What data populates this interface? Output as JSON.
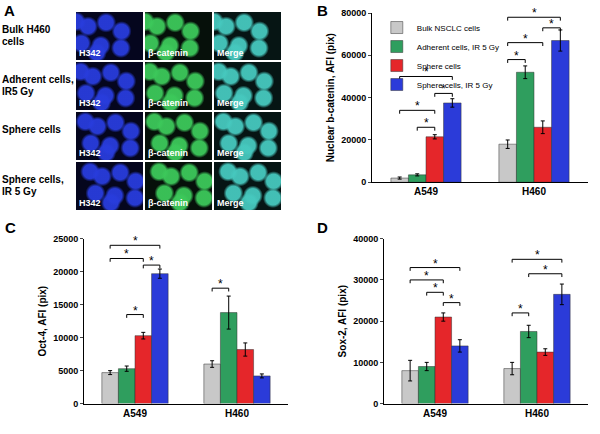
{
  "panel_a": {
    "label": "A",
    "rows": [
      "Bulk H460 cells",
      "Adherent cells, IR5 Gy",
      "Sphere cells",
      "Sphere cells, IR 5 Gy"
    ],
    "columns": [
      "H342",
      "β-catenin",
      "Merge"
    ]
  },
  "chart_data": [
    {
      "type": "bar",
      "title": "B",
      "y_label": "Nuclear b-catenin, AFI (pix)",
      "categories": [
        "A549",
        "H460"
      ],
      "series": [
        {
          "name": "Bulk NSCLC cells",
          "color": "#c8c8c8",
          "values": [
            2000,
            18000
          ],
          "errors": [
            500,
            2000
          ]
        },
        {
          "name": "Adherent cells, IR 5 Gy",
          "color": "#2f9e5e",
          "values": [
            3500,
            52000
          ],
          "errors": [
            500,
            3000
          ]
        },
        {
          "name": "Sphere cells",
          "color": "#e5262a",
          "values": [
            21500,
            26000
          ],
          "errors": [
            1000,
            3000
          ]
        },
        {
          "name": "Sphere cells, IR 5 Gy",
          "color": "#2b3bd9",
          "values": [
            37500,
            67000
          ],
          "errors": [
            2000,
            5000
          ]
        }
      ],
      "ylim": [
        0,
        80000
      ],
      "yticks": [
        0,
        20000,
        40000,
        60000,
        80000
      ],
      "grid": false,
      "legend": "upper left",
      "significance": [
        {
          "category": 0,
          "from": 0,
          "to": 3,
          "y": 50000,
          "text": "*"
        },
        {
          "category": 0,
          "from": 2,
          "to": 3,
          "y": 42000,
          "text": "*"
        },
        {
          "category": 0,
          "from": 0,
          "to": 2,
          "y": 34000,
          "text": "*"
        },
        {
          "category": 0,
          "from": 1,
          "to": 2,
          "y": 26000,
          "text": "*"
        },
        {
          "category": 1,
          "from": 0,
          "to": 3,
          "y": 78000,
          "text": "*"
        },
        {
          "category": 1,
          "from": 2,
          "to": 3,
          "y": 73000,
          "text": "*"
        },
        {
          "category": 1,
          "from": 0,
          "to": 2,
          "y": 66000,
          "text": "*"
        },
        {
          "category": 1,
          "from": 0,
          "to": 1,
          "y": 58000,
          "text": "*"
        }
      ]
    },
    {
      "type": "bar",
      "title": "C",
      "y_label": "Oct-4, AFI (pix)",
      "categories": [
        "A549",
        "H460"
      ],
      "series": [
        {
          "color": "#c8c8c8",
          "values": [
            4700,
            6000
          ],
          "errors": [
            300,
            500
          ]
        },
        {
          "color": "#2f9e5e",
          "values": [
            5300,
            13800
          ],
          "errors": [
            400,
            2500
          ]
        },
        {
          "color": "#e5262a",
          "values": [
            10300,
            8200
          ],
          "errors": [
            500,
            1000
          ]
        },
        {
          "color": "#2b3bd9",
          "values": [
            19700,
            4200
          ],
          "errors": [
            700,
            300
          ]
        }
      ],
      "ylim": [
        0,
        25000
      ],
      "yticks": [
        0,
        5000,
        10000,
        15000,
        20000,
        25000
      ],
      "grid": false,
      "significance": [
        {
          "category": 0,
          "from": 0,
          "to": 3,
          "y": 24000,
          "text": "*"
        },
        {
          "category": 0,
          "from": 0,
          "to": 2,
          "y": 22000,
          "text": "*"
        },
        {
          "category": 0,
          "from": 2,
          "to": 3,
          "y": 21000,
          "text": "*"
        },
        {
          "category": 0,
          "from": 1,
          "to": 2,
          "y": 13500,
          "text": "*"
        },
        {
          "category": 1,
          "from": 0,
          "to": 1,
          "y": 17500,
          "text": "*"
        }
      ]
    },
    {
      "type": "bar",
      "title": "D",
      "y_label": "Sox-2, AFI (pix)",
      "categories": [
        "A549",
        "H460"
      ],
      "series": [
        {
          "color": "#c8c8c8",
          "values": [
            8000,
            8500
          ],
          "errors": [
            2500,
            1500
          ]
        },
        {
          "color": "#2f9e5e",
          "values": [
            9000,
            17500
          ],
          "errors": [
            1000,
            1500
          ]
        },
        {
          "color": "#e5262a",
          "values": [
            21000,
            12500
          ],
          "errors": [
            1000,
            800
          ]
        },
        {
          "color": "#2b3bd9",
          "values": [
            14000,
            26500
          ],
          "errors": [
            1500,
            2500
          ]
        }
      ],
      "ylim": [
        0,
        40000
      ],
      "yticks": [
        0,
        10000,
        20000,
        30000,
        40000
      ],
      "grid": false,
      "significance": [
        {
          "category": 0,
          "from": 0,
          "to": 3,
          "y": 33000,
          "text": "*"
        },
        {
          "category": 0,
          "from": 0,
          "to": 2,
          "y": 30000,
          "text": "*"
        },
        {
          "category": 0,
          "from": 1,
          "to": 2,
          "y": 27000,
          "text": "*"
        },
        {
          "category": 0,
          "from": 2,
          "to": 3,
          "y": 24500,
          "text": "*"
        },
        {
          "category": 1,
          "from": 0,
          "to": 3,
          "y": 35000,
          "text": "*"
        },
        {
          "category": 1,
          "from": 1,
          "to": 3,
          "y": 31500,
          "text": "*"
        },
        {
          "category": 1,
          "from": 0,
          "to": 1,
          "y": 22000,
          "text": "*"
        }
      ]
    }
  ]
}
